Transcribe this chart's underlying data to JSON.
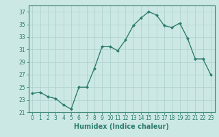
{
  "x": [
    0,
    1,
    2,
    3,
    4,
    5,
    6,
    7,
    8,
    9,
    10,
    11,
    12,
    13,
    14,
    15,
    16,
    17,
    18,
    19,
    20,
    21,
    22,
    23
  ],
  "y": [
    24.0,
    24.2,
    23.5,
    23.2,
    22.2,
    21.5,
    25.0,
    25.0,
    28.0,
    31.5,
    31.5,
    30.8,
    32.5,
    34.8,
    36.0,
    37.0,
    36.5,
    34.8,
    34.5,
    35.2,
    32.8,
    29.5,
    29.5,
    27.0
  ],
  "line_color": "#2e7d6e",
  "marker": "D",
  "marker_size": 2.0,
  "line_width": 1.0,
  "xlabel": "Humidex (Indice chaleur)",
  "xlabel_fontsize": 7,
  "xlim": [
    -0.5,
    23.5
  ],
  "ylim": [
    21,
    38
  ],
  "yticks": [
    21,
    23,
    25,
    27,
    29,
    31,
    33,
    35,
    37
  ],
  "xticks": [
    0,
    1,
    2,
    3,
    4,
    5,
    6,
    7,
    8,
    9,
    10,
    11,
    12,
    13,
    14,
    15,
    16,
    17,
    18,
    19,
    20,
    21,
    22,
    23
  ],
  "bg_color": "#cce8e4",
  "grid_color_major": "#aacfcb",
  "tick_fontsize": 5.5
}
